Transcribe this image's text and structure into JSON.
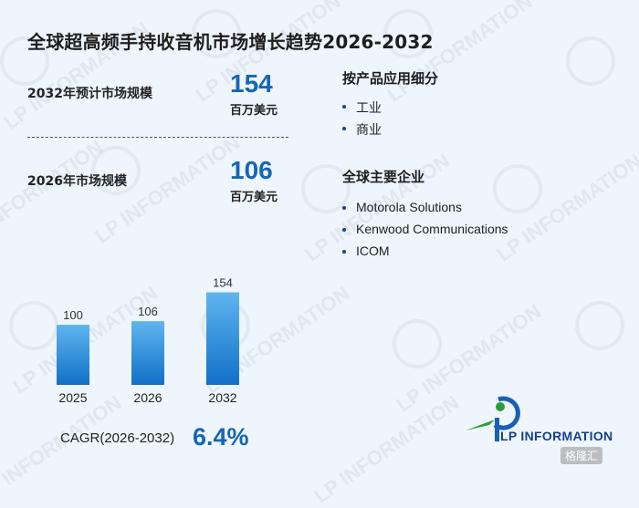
{
  "title": "全球超高频手持收音机市场增长趋势2026-2032",
  "metrics": [
    {
      "label": "2032年预计市场规模",
      "value": "154",
      "unit": "百万美元"
    },
    {
      "label": "2026年市场规模",
      "value": "106",
      "unit": "百万美元"
    }
  ],
  "segments": {
    "title": "按产品应用细分",
    "items": [
      "工业",
      "商业"
    ]
  },
  "companies": {
    "title": "全球主要企业",
    "items": [
      "Motorola Solutions",
      "Kenwood Communications",
      "ICOM"
    ]
  },
  "cagr": {
    "label": "CAGR(2026-2032)",
    "value": "6.4%"
  },
  "logo": {
    "text": "LP INFORMATION"
  },
  "watermark": {
    "text": "LP INFORMATION"
  },
  "corner_badge": "格隆汇",
  "colors": {
    "accent": "#1566b6",
    "bar_top": "#5fb5ee",
    "bar_bottom": "#1170c8"
  },
  "chart_data": {
    "type": "bar",
    "categories": [
      "2025",
      "2026",
      "2032"
    ],
    "values": [
      100,
      106,
      154
    ],
    "title": "",
    "xlabel": "",
    "ylabel": "",
    "grid": false
  }
}
